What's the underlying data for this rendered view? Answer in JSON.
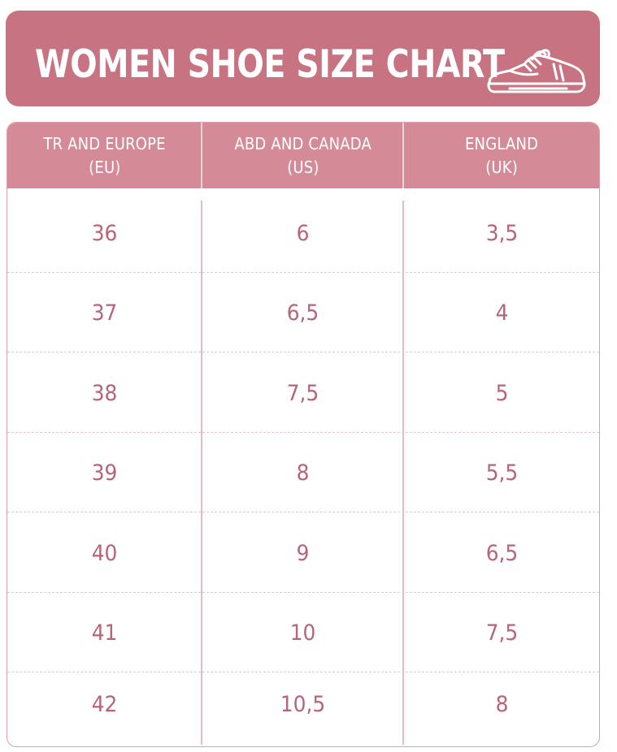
{
  "title": "WOMEN SHOE SIZE CHART",
  "icon": "sneaker-icon",
  "colors": {
    "banner": "#c77382",
    "header": "#d48b97",
    "value_text": "#b86478",
    "border": "#d9a1ab"
  },
  "columns": [
    {
      "line1": "TR AND EUROPE",
      "line2": "(EU)"
    },
    {
      "line1": "ABD AND CANADA",
      "line2": "(US)"
    },
    {
      "line1": "ENGLAND",
      "line2": "(UK)"
    }
  ],
  "rows": [
    [
      "36",
      "6",
      "3,5"
    ],
    [
      "37",
      "6,5",
      "4"
    ],
    [
      "38",
      "7,5",
      "5"
    ],
    [
      "39",
      "8",
      "5,5"
    ],
    [
      "40",
      "9",
      "6,5"
    ],
    [
      "41",
      "10",
      "7,5"
    ],
    [
      "42",
      "10,5",
      "8"
    ]
  ]
}
